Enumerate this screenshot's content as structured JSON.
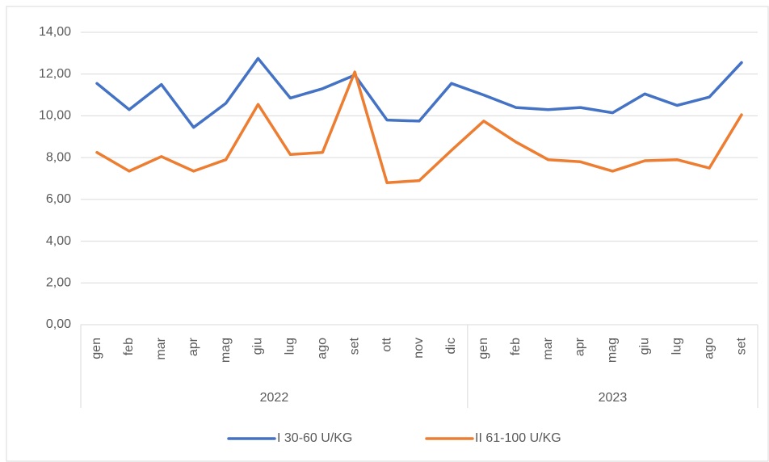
{
  "chart_data": {
    "type": "line",
    "groups": [
      {
        "name": "2022",
        "categories": [
          "gen",
          "feb",
          "mar",
          "apr",
          "mag",
          "giu",
          "lug",
          "ago",
          "set",
          "ott",
          "nov",
          "dic"
        ]
      },
      {
        "name": "2023",
        "categories": [
          "gen",
          "feb",
          "mar",
          "apr",
          "mag",
          "giu",
          "lug",
          "ago",
          "set"
        ]
      }
    ],
    "series": [
      {
        "name": "I 30-60 U/KG",
        "color": "#4472c4",
        "values": [
          11.55,
          10.3,
          11.5,
          9.45,
          10.6,
          12.75,
          10.85,
          11.3,
          11.95,
          9.8,
          9.75,
          11.55,
          11.0,
          10.4,
          10.3,
          10.4,
          10.15,
          11.05,
          10.5,
          10.9,
          12.55
        ]
      },
      {
        "name": "II 61-100 U/KG",
        "color": "#ed7d31",
        "values": [
          8.25,
          7.35,
          8.05,
          7.35,
          7.9,
          10.55,
          8.15,
          8.25,
          12.1,
          6.8,
          6.9,
          8.35,
          9.75,
          8.75,
          7.9,
          7.8,
          7.35,
          7.85,
          7.9,
          7.5,
          10.05
        ]
      }
    ],
    "ylim": [
      0,
      14
    ],
    "yticks": [
      {
        "value": 0,
        "label": "0,00"
      },
      {
        "value": 2,
        "label": "2,00"
      },
      {
        "value": 4,
        "label": "4,00"
      },
      {
        "value": 6,
        "label": "6,00"
      },
      {
        "value": 8,
        "label": "8,00"
      },
      {
        "value": 10,
        "label": "10,00"
      },
      {
        "value": 12,
        "label": "12,00"
      },
      {
        "value": 14,
        "label": "14,00"
      }
    ],
    "grid": true,
    "legend": "bottom"
  }
}
